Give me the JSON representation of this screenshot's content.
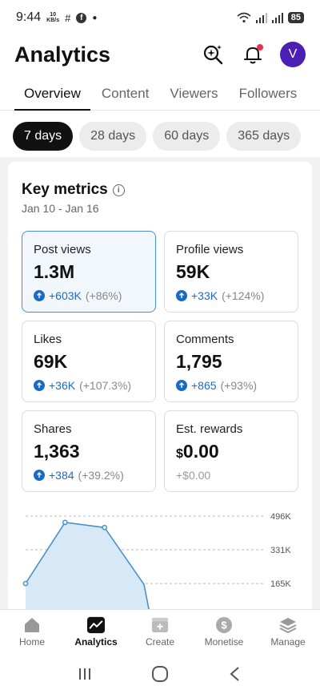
{
  "status_bar": {
    "time": "9:44",
    "net_speed": "10",
    "net_unit": "KB/s",
    "battery": "85"
  },
  "header": {
    "title": "Analytics",
    "avatar_letter": "V"
  },
  "tabs": [
    {
      "label": "Overview",
      "active": true
    },
    {
      "label": "Content",
      "active": false
    },
    {
      "label": "Viewers",
      "active": false
    },
    {
      "label": "Followers",
      "active": false
    }
  ],
  "ranges": [
    {
      "label": "7 days",
      "active": true
    },
    {
      "label": "28 days",
      "active": false
    },
    {
      "label": "60 days",
      "active": false
    },
    {
      "label": "365 days",
      "active": false
    }
  ],
  "key_metrics": {
    "title": "Key metrics",
    "date_range": "Jan 10 - Jan 16",
    "metrics": [
      {
        "label": "Post views",
        "value": "1.3M",
        "change": "+603K",
        "pct": "(+86%)"
      },
      {
        "label": "Profile views",
        "value": "59K",
        "change": "+33K",
        "pct": "(+124%)"
      },
      {
        "label": "Likes",
        "value": "69K",
        "change": "+36K",
        "pct": "(+107.3%)"
      },
      {
        "label": "Comments",
        "value": "1,795",
        "change": "+865",
        "pct": "(+93%)"
      },
      {
        "label": "Shares",
        "value": "1,363",
        "change": "+384",
        "pct": "(+39.2%)"
      },
      {
        "label": "Est. rewards",
        "value_prefix": "$",
        "value": "0.00",
        "change": "+$0.00"
      }
    ]
  },
  "chart_data": {
    "type": "area",
    "y_ticks": [
      "496K",
      "331K",
      "165K"
    ],
    "y_tick_values": [
      496,
      331,
      165
    ],
    "ylim": [
      0,
      496
    ],
    "points": [
      {
        "x": 0,
        "y": 165
      },
      {
        "x": 1,
        "y": 465
      },
      {
        "x": 2,
        "y": 440
      },
      {
        "x": 3,
        "y": 160
      }
    ],
    "color": "#4a90c8",
    "fill": "#d7e8f7"
  },
  "bottom_nav": [
    {
      "label": "Home",
      "icon": "home-icon",
      "active": false
    },
    {
      "label": "Analytics",
      "icon": "analytics-icon",
      "active": true
    },
    {
      "label": "Create",
      "icon": "create-icon",
      "active": false
    },
    {
      "label": "Monetise",
      "icon": "dollar-icon",
      "active": false
    },
    {
      "label": "Manage",
      "icon": "layers-icon",
      "active": false
    }
  ]
}
